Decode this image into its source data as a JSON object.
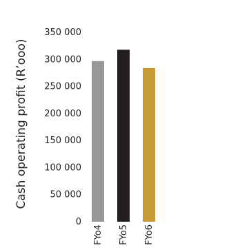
{
  "chart_data": {
    "type": "bar",
    "title": "",
    "xlabel": "",
    "ylabel": "Cash operating profit (R’ooo)",
    "categories": [
      "FYo4",
      "FYo5",
      "FYo6"
    ],
    "values": [
      297000,
      318000,
      284000
    ],
    "bar_colors": [
      "#97979a",
      "#231f20",
      "#c79a37"
    ],
    "ylim": [
      0,
      350000
    ],
    "yticks": [
      0,
      50000,
      100000,
      150000,
      200000,
      250000,
      300000,
      350000
    ],
    "ytick_labels": [
      "0",
      "50 000",
      "100 000",
      "150 000",
      "200 000",
      "250 000",
      "300 000",
      "350 000"
    ],
    "grid": false,
    "legend": "none"
  }
}
